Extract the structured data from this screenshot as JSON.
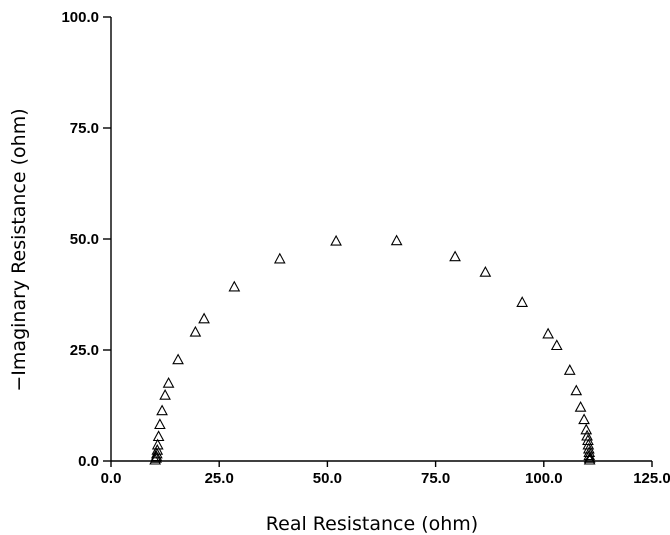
{
  "chart_data": {
    "type": "scatter",
    "title": "",
    "xlabel": "Real Resistance (ohm)",
    "ylabel": "−Imaginary Resistance (ohm)",
    "xlim": [
      0,
      125
    ],
    "ylim": [
      0,
      100
    ],
    "xticks": [
      "0.0",
      "25.0",
      "50.0",
      "75.0",
      "100.0",
      "125.0"
    ],
    "yticks": [
      "0.0",
      "25.0",
      "50.0",
      "75.0",
      "100.0"
    ],
    "marker": "triangle-open",
    "grid": false,
    "legend": "none",
    "series": [
      {
        "points": [
          [
            10.2,
            0.2
          ],
          [
            10.4,
            0.6
          ],
          [
            10.5,
            1.0
          ],
          [
            10.6,
            1.6
          ],
          [
            10.7,
            2.4
          ],
          [
            10.8,
            3.6
          ],
          [
            11.0,
            5.5
          ],
          [
            11.3,
            8.2
          ],
          [
            11.8,
            11.3
          ],
          [
            12.5,
            14.8
          ],
          [
            13.3,
            17.5
          ],
          [
            15.5,
            22.8
          ],
          [
            19.5,
            29.0
          ],
          [
            21.5,
            32.0
          ],
          [
            28.5,
            39.2
          ],
          [
            39.0,
            45.5
          ],
          [
            52.0,
            49.5
          ],
          [
            66.0,
            49.6
          ],
          [
            79.5,
            46.0
          ],
          [
            86.5,
            42.5
          ],
          [
            95.0,
            35.7
          ],
          [
            101.0,
            28.6
          ],
          [
            103.0,
            26.0
          ],
          [
            106.0,
            20.4
          ],
          [
            107.5,
            15.8
          ],
          [
            108.5,
            12.1
          ],
          [
            109.3,
            9.3
          ],
          [
            109.8,
            7.0
          ],
          [
            110.0,
            5.6
          ],
          [
            110.2,
            4.6
          ],
          [
            110.3,
            3.6
          ],
          [
            110.4,
            2.7
          ],
          [
            110.5,
            1.9
          ],
          [
            110.5,
            1.2
          ],
          [
            110.6,
            0.6
          ],
          [
            110.6,
            0.2
          ]
        ]
      }
    ]
  }
}
